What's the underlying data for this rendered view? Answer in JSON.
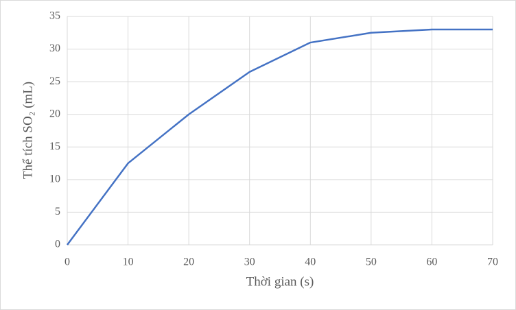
{
  "chart_data": {
    "type": "line",
    "x_label": "Thời gian (s)",
    "y_label": "Thể tích SO₂ (mL)",
    "x": [
      0,
      10,
      20,
      30,
      40,
      50,
      60,
      70
    ],
    "series": [
      {
        "name": "SO₂",
        "color": "#4472c4",
        "values": [
          0,
          12.5,
          20,
          26.5,
          31,
          32.5,
          33,
          33
        ]
      }
    ],
    "xlim": [
      0,
      70
    ],
    "xticks": [
      0,
      10,
      20,
      30,
      40,
      50,
      60,
      70
    ],
    "ylim": [
      0,
      35
    ],
    "yticks": [
      0,
      5,
      10,
      15,
      20,
      25,
      30,
      35
    ],
    "grid": true
  }
}
